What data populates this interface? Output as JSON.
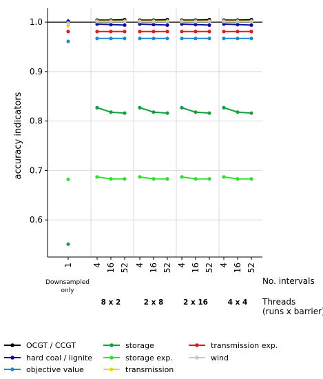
{
  "chart_data": {
    "type": "line",
    "title": "",
    "ylabel": "accuracy indicators",
    "ylim": [
      0.525,
      1.028
    ],
    "yticks": [
      0.6,
      0.7,
      0.8,
      0.9,
      1.0
    ],
    "ytick_labels": [
      "0.6",
      "0.7",
      "0.8",
      "0.9",
      "1.0"
    ],
    "reference_line": 1.0,
    "grid": true,
    "x_row_label": "No. intervals",
    "threads_label": "Threads",
    "threads_sublabel": "(runs x barrier)",
    "single": {
      "tick": "1",
      "label_line1": "Downsampled",
      "label_line2": "only"
    },
    "groups": [
      {
        "label": "8 x 2",
        "ticks": [
          "4",
          "16",
          "52"
        ]
      },
      {
        "label": "2 x 8",
        "ticks": [
          "4",
          "16",
          "52"
        ]
      },
      {
        "label": "2 x 16",
        "ticks": [
          "4",
          "16",
          "52"
        ]
      },
      {
        "label": "4 x 4",
        "ticks": [
          "4",
          "16",
          "52"
        ]
      }
    ],
    "legend_position": "bottom",
    "series": [
      {
        "name": "OCGT / CCGT",
        "color": "#000000",
        "single": 1.0,
        "group": [
          1.004,
          1.004,
          1.005
        ]
      },
      {
        "name": "hard coal / lignite",
        "color": "#0a0aa0",
        "single": 1.002,
        "group": [
          0.996,
          0.995,
          0.994
        ]
      },
      {
        "name": "objective value",
        "color": "#1e8ad6",
        "single": 0.961,
        "group": [
          0.967,
          0.967,
          0.967
        ]
      },
      {
        "name": "storage",
        "color": "#13a043",
        "single": 0.551,
        "group": [
          0.827,
          0.818,
          0.816
        ]
      },
      {
        "name": "storage exp.",
        "color": "#2fe02f",
        "single": 0.682,
        "group": [
          0.687,
          0.683,
          0.683
        ]
      },
      {
        "name": "transmission",
        "color": "#e6d72a",
        "single": 0.993,
        "group": [
          1.002,
          1.002,
          1.002
        ]
      },
      {
        "name": "transmission exp.",
        "color": "#e21a1a",
        "single": 0.981,
        "group": [
          0.981,
          0.981,
          0.981
        ]
      },
      {
        "name": "wind",
        "color": "#c8c8c8",
        "single": 0.998,
        "group": [
          1.001,
          1.001,
          1.001
        ]
      }
    ]
  }
}
